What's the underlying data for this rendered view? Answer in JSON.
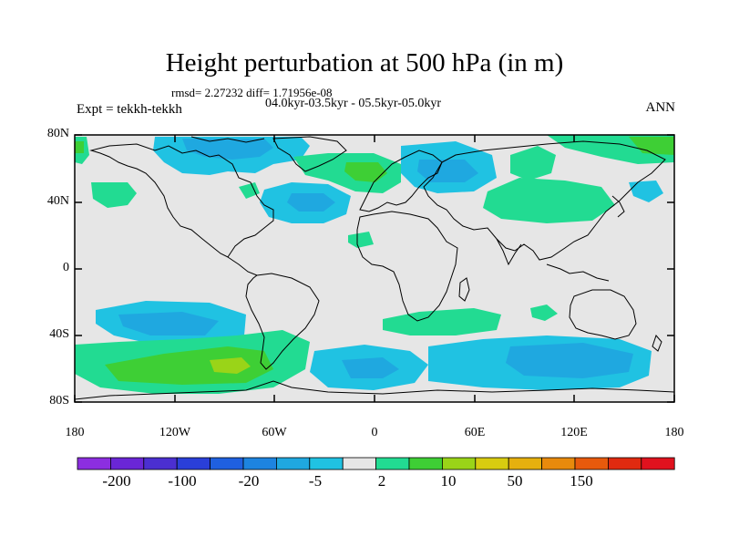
{
  "title": "Height perturbation at 500 hPa (in m)",
  "stats": "rmsd= 2.27232 diff= 1.71956e-08",
  "periods": "04.0kyr-03.5kyr - 05.5kyr-05.0kyr",
  "experiment": "Expt = tekkh-tekkh",
  "season": "ANN",
  "axes": {
    "lat_labels": [
      "80N",
      "40N",
      "0",
      "40S",
      "80S"
    ],
    "lon_labels": [
      "180",
      "120W",
      "60W",
      "0",
      "60E",
      "120E",
      "180"
    ]
  },
  "colorbar": {
    "colors": [
      "#8c2ee0",
      "#6a26d6",
      "#4b2fd1",
      "#2a3fd9",
      "#1f60e0",
      "#1d84e0",
      "#1fa8e0",
      "#20c2e2",
      "#e6e6e6",
      "#22db92",
      "#3ecf35",
      "#9ad418",
      "#d8cc10",
      "#e6b00e",
      "#e88a0c",
      "#e85a0c",
      "#e02a10",
      "#e0121e"
    ],
    "labels": [
      "-200",
      "-100",
      "-20",
      "-5",
      "2",
      "10",
      "50",
      "150"
    ]
  }
}
